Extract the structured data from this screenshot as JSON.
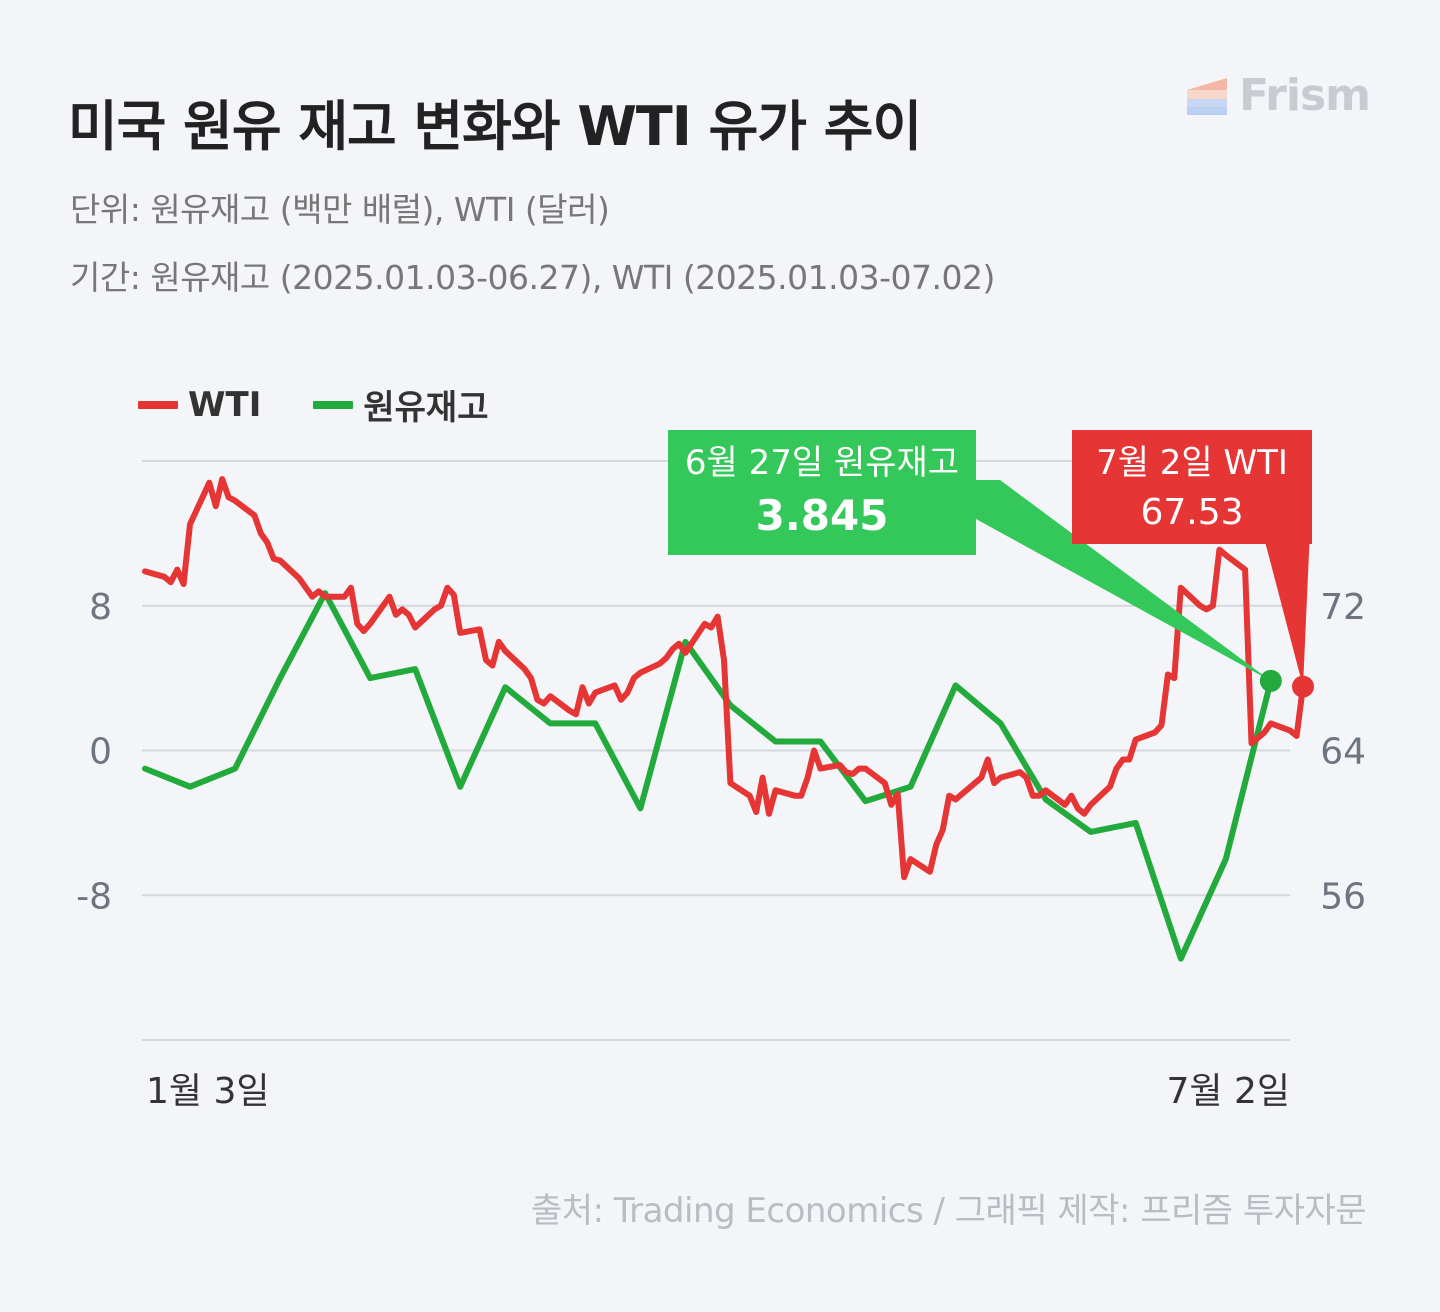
{
  "header": {
    "title": "미국 원유 재고 변화와 WTI 유가 추이",
    "subtitle_unit": "단위: 원유재고 (백만 배럴), WTI (달러)",
    "subtitle_period": "기간: 원유재고 (2025.01.03-06.27), WTI (2025.01.03-07.02)"
  },
  "brand": {
    "name": "Frism"
  },
  "footer": {
    "source": "출처: Trading Economics / 그래픽 제작: 프리즘 투자자문"
  },
  "colors": {
    "wti": "#e53535",
    "inventory": "#22aa3c",
    "callout_green": "#34c759",
    "callout_red": "#e53535"
  },
  "chart_data": {
    "type": "line",
    "legend": [
      "WTI",
      "원유재고"
    ],
    "x_labels": {
      "start": "1월 3일",
      "end": "7월 2일"
    },
    "left_axis": {
      "ticks": [
        "8",
        "0",
        "-8"
      ],
      "tick_values": [
        8,
        0,
        -8
      ],
      "ylim": [
        -16,
        16
      ]
    },
    "right_axis": {
      "ticks": [
        "72",
        "64",
        "56"
      ],
      "tick_values": [
        72,
        64,
        56
      ],
      "ylim": [
        48,
        80
      ]
    },
    "series": [
      {
        "name": "원유재고",
        "axis": "left",
        "dates": [
          "2025-01-03",
          "2025-01-10",
          "2025-01-17",
          "2025-01-24",
          "2025-01-31",
          "2025-02-07",
          "2025-02-14",
          "2025-02-21",
          "2025-02-28",
          "2025-03-07",
          "2025-03-14",
          "2025-03-21",
          "2025-03-28",
          "2025-04-04",
          "2025-04-11",
          "2025-04-18",
          "2025-04-25",
          "2025-05-02",
          "2025-05-09",
          "2025-05-16",
          "2025-05-23",
          "2025-05-30",
          "2025-06-06",
          "2025-06-13",
          "2025-06-20",
          "2025-06-27"
        ],
        "values": [
          -1.0,
          -2.0,
          -1.0,
          4.0,
          8.7,
          4.0,
          4.5,
          -2.0,
          3.5,
          1.5,
          1.5,
          -3.2,
          6.0,
          2.5,
          0.5,
          0.5,
          -2.8,
          -2.0,
          3.6,
          1.5,
          -2.7,
          -4.5,
          -4.0,
          -11.5,
          -6.0,
          3.845
        ]
      },
      {
        "name": "WTI",
        "axis": "right",
        "dates": [
          "2025-01-03",
          "2025-01-06",
          "2025-01-07",
          "2025-01-08",
          "2025-01-09",
          "2025-01-10",
          "2025-01-13",
          "2025-01-14",
          "2025-01-15",
          "2025-01-16",
          "2025-01-17",
          "2025-01-20",
          "2025-01-21",
          "2025-01-22",
          "2025-01-23",
          "2025-01-24",
          "2025-01-27",
          "2025-01-28",
          "2025-01-29",
          "2025-01-30",
          "2025-01-31",
          "2025-02-03",
          "2025-02-04",
          "2025-02-05",
          "2025-02-06",
          "2025-02-07",
          "2025-02-10",
          "2025-02-11",
          "2025-02-12",
          "2025-02-13",
          "2025-02-14",
          "2025-02-17",
          "2025-02-18",
          "2025-02-19",
          "2025-02-20",
          "2025-02-21",
          "2025-02-24",
          "2025-02-25",
          "2025-02-26",
          "2025-02-27",
          "2025-02-28",
          "2025-03-03",
          "2025-03-04",
          "2025-03-05",
          "2025-03-06",
          "2025-03-07",
          "2025-03-10",
          "2025-03-11",
          "2025-03-12",
          "2025-03-13",
          "2025-03-14",
          "2025-03-17",
          "2025-03-18",
          "2025-03-19",
          "2025-03-20",
          "2025-03-21",
          "2025-03-24",
          "2025-03-25",
          "2025-03-26",
          "2025-03-27",
          "2025-03-28",
          "2025-03-31",
          "2025-04-01",
          "2025-04-02",
          "2025-04-03",
          "2025-04-04",
          "2025-04-07",
          "2025-04-08",
          "2025-04-09",
          "2025-04-10",
          "2025-04-11",
          "2025-04-14",
          "2025-04-15",
          "2025-04-16",
          "2025-04-17",
          "2025-04-18",
          "2025-04-21",
          "2025-04-22",
          "2025-04-23",
          "2025-04-24",
          "2025-04-25",
          "2025-04-28",
          "2025-04-29",
          "2025-04-30",
          "2025-05-01",
          "2025-05-02",
          "2025-05-05",
          "2025-05-06",
          "2025-05-07",
          "2025-05-08",
          "2025-05-09",
          "2025-05-12",
          "2025-05-13",
          "2025-05-14",
          "2025-05-15",
          "2025-05-16",
          "2025-05-19",
          "2025-05-20",
          "2025-05-21",
          "2025-05-22",
          "2025-05-23",
          "2025-05-26",
          "2025-05-27",
          "2025-05-28",
          "2025-05-29",
          "2025-05-30",
          "2025-06-02",
          "2025-06-03",
          "2025-06-04",
          "2025-06-05",
          "2025-06-06",
          "2025-06-09",
          "2025-06-10",
          "2025-06-11",
          "2025-06-12",
          "2025-06-13",
          "2025-06-16",
          "2025-06-17",
          "2025-06-18",
          "2025-06-19",
          "2025-06-20",
          "2025-06-23",
          "2025-06-24",
          "2025-06-25",
          "2025-06-26",
          "2025-06-27",
          "2025-06-30",
          "2025-07-01",
          "2025-07-02"
        ],
        "values": [
          73.9,
          73.6,
          73.3,
          74.0,
          73.2,
          76.5,
          78.8,
          77.5,
          79.0,
          78.0,
          77.8,
          77.0,
          76.0,
          75.5,
          74.6,
          74.5,
          73.5,
          73.0,
          72.5,
          72.8,
          72.5,
          72.5,
          73.0,
          71.0,
          70.6,
          71.0,
          72.5,
          71.5,
          71.8,
          71.5,
          70.8,
          71.8,
          72.0,
          73.0,
          72.6,
          70.5,
          70.7,
          69.0,
          68.7,
          70.0,
          69.5,
          68.5,
          68.0,
          66.8,
          66.6,
          67.0,
          66.2,
          66.0,
          67.5,
          66.6,
          67.2,
          67.6,
          66.8,
          67.2,
          68.0,
          68.3,
          68.8,
          69.1,
          69.6,
          69.9,
          69.4,
          71.0,
          70.8,
          71.4,
          69.0,
          62.2,
          61.5,
          60.6,
          62.5,
          60.5,
          61.8,
          61.5,
          61.5,
          62.5,
          64.0,
          63.0,
          63.2,
          62.8,
          62.7,
          63.0,
          63.0,
          62.2,
          61.0,
          61.6,
          57.0,
          58.0,
          57.3,
          58.8,
          59.6,
          61.5,
          61.3,
          62.2,
          62.5,
          63.5,
          62.2,
          62.5,
          62.8,
          62.5,
          61.5,
          61.5,
          61.8,
          61.0,
          61.5,
          60.8,
          60.5,
          61.0,
          62.0,
          63.0,
          63.5,
          63.5,
          64.6,
          65.0,
          65.4,
          68.2,
          68.0,
          73.0,
          72.0,
          71.8,
          72.0,
          75.1,
          74.8,
          74.0,
          64.4,
          64.7,
          65.0,
          65.5,
          65.1,
          64.8,
          67.53
        ]
      }
    ],
    "callouts": [
      {
        "date_label": "6월 27일 원유재고",
        "value_label": "3.845"
      },
      {
        "date_label": "7월 2일 WTI",
        "value_label": "67.53"
      }
    ]
  }
}
